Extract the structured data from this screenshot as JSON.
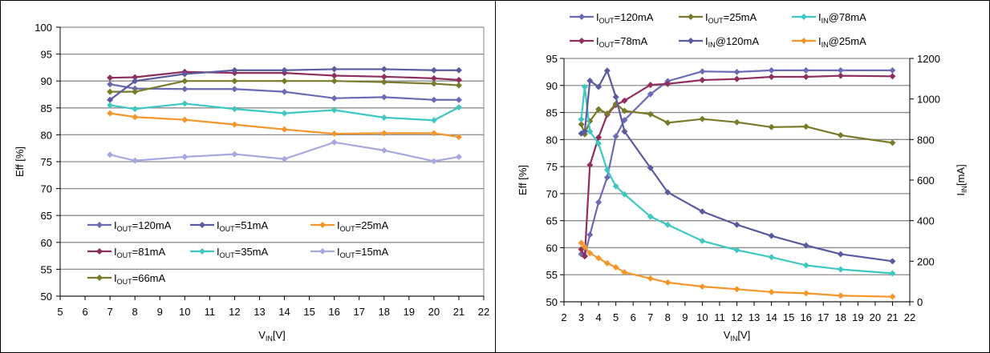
{
  "chart_data": [
    {
      "type": "line",
      "xlabel": "V_IN [V]",
      "ylabel": "Eff [%]",
      "xlim": [
        5,
        22
      ],
      "ylim": [
        50,
        100
      ],
      "xticks": [
        5,
        6,
        7,
        8,
        9,
        10,
        11,
        12,
        13,
        14,
        15,
        16,
        17,
        18,
        19,
        20,
        21,
        22
      ],
      "yticks": [
        50,
        55,
        60,
        65,
        70,
        75,
        80,
        85,
        90,
        95,
        100
      ],
      "grid": "horizontal",
      "legend_placement": "lower-left",
      "series": [
        {
          "name": "I_OUT=120mA",
          "color": "#6b6bb5",
          "points": [
            [
              7,
              89.4
            ],
            [
              8,
              88.6
            ],
            [
              10,
              88.5
            ],
            [
              12,
              88.5
            ],
            [
              14,
              88.0
            ],
            [
              16,
              86.8
            ],
            [
              18,
              87.0
            ],
            [
              20,
              86.5
            ],
            [
              21,
              86.5
            ]
          ]
        },
        {
          "name": "I_OUT=81mA",
          "color": "#8f2f5e",
          "points": [
            [
              7,
              90.6
            ],
            [
              8,
              90.7
            ],
            [
              10,
              91.7
            ],
            [
              12,
              91.5
            ],
            [
              14,
              91.5
            ],
            [
              16,
              91.0
            ],
            [
              18,
              90.8
            ],
            [
              20,
              90.5
            ],
            [
              21,
              90.2
            ]
          ]
        },
        {
          "name": "I_OUT=66mA",
          "color": "#7a7a2a",
          "points": [
            [
              7,
              88.0
            ],
            [
              8,
              88.0
            ],
            [
              10,
              90.0
            ],
            [
              12,
              90.0
            ],
            [
              14,
              90.0
            ],
            [
              16,
              90.0
            ],
            [
              18,
              89.8
            ],
            [
              20,
              89.5
            ],
            [
              21,
              89.2
            ]
          ]
        },
        {
          "name": "I_OUT=51mA",
          "color": "#5a5a9e",
          "points": [
            [
              7,
              86.5
            ],
            [
              8,
              90.0
            ],
            [
              10,
              91.3
            ],
            [
              12,
              92.0
            ],
            [
              14,
              92.0
            ],
            [
              16,
              92.2
            ],
            [
              18,
              92.2
            ],
            [
              20,
              92.0
            ],
            [
              21,
              92.0
            ]
          ]
        },
        {
          "name": "I_OUT=35mA",
          "color": "#3ec8c0",
          "points": [
            [
              7,
              85.5
            ],
            [
              8,
              84.8
            ],
            [
              10,
              85.8
            ],
            [
              12,
              84.8
            ],
            [
              14,
              84.0
            ],
            [
              16,
              84.6
            ],
            [
              18,
              83.2
            ],
            [
              20,
              82.7
            ],
            [
              21,
              85.1
            ]
          ]
        },
        {
          "name": "I_OUT=25mA",
          "color": "#f5952a",
          "points": [
            [
              7,
              84.0
            ],
            [
              8,
              83.3
            ],
            [
              10,
              82.8
            ],
            [
              12,
              81.9
            ],
            [
              14,
              81.0
            ],
            [
              16,
              80.2
            ],
            [
              18,
              80.3
            ],
            [
              20,
              80.3
            ],
            [
              21,
              79.6
            ]
          ]
        },
        {
          "name": "I_OUT=15mA",
          "color": "#a8a8e0",
          "points": [
            [
              7,
              76.3
            ],
            [
              8,
              75.2
            ],
            [
              10,
              75.9
            ],
            [
              12,
              76.4
            ],
            [
              14,
              75.5
            ],
            [
              16,
              78.6
            ],
            [
              18,
              77.1
            ],
            [
              20,
              75.1
            ],
            [
              21,
              75.9
            ]
          ]
        }
      ]
    },
    {
      "type": "line",
      "xlabel": "V_IN [V]",
      "ylabel": "Eff [%]",
      "y2label": "I_IN [mA]",
      "xlim": [
        2,
        22
      ],
      "ylim": [
        50,
        95
      ],
      "y2lim": [
        0,
        1200
      ],
      "xticks": [
        2,
        3,
        4,
        5,
        6,
        7,
        8,
        9,
        10,
        11,
        12,
        13,
        14,
        15,
        16,
        17,
        18,
        19,
        20,
        21,
        22
      ],
      "yticks": [
        50,
        55,
        60,
        65,
        70,
        75,
        80,
        85,
        90,
        95
      ],
      "y2ticks": [
        0,
        200,
        400,
        600,
        800,
        1000,
        1200
      ],
      "grid": "horizontal",
      "legend_placement": "top",
      "series": [
        {
          "name": "I_OUT=120mA",
          "axis": "left",
          "color": "#6b6bb5",
          "points": [
            [
              3,
              58.8
            ],
            [
              3.2,
              58.5
            ],
            [
              3.5,
              62.4
            ],
            [
              4,
              68.4
            ],
            [
              4.5,
              73.0
            ],
            [
              5,
              80.6
            ],
            [
              5.5,
              83.6
            ],
            [
              7,
              88.4
            ],
            [
              8,
              90.8
            ],
            [
              10,
              92.6
            ],
            [
              12,
              92.5
            ],
            [
              14,
              92.8
            ],
            [
              16,
              92.8
            ],
            [
              18,
              92.8
            ],
            [
              21,
              92.8
            ]
          ]
        },
        {
          "name": "I_OUT=78mA",
          "axis": "left",
          "color": "#8f2f5e",
          "points": [
            [
              3,
              59.7
            ],
            [
              3.2,
              58.4
            ],
            [
              3.5,
              75.3
            ],
            [
              4,
              80.4
            ],
            [
              4.5,
              84.6
            ],
            [
              5,
              86.4
            ],
            [
              5.5,
              87.2
            ],
            [
              7,
              90.1
            ],
            [
              8,
              90.3
            ],
            [
              10,
              91.0
            ],
            [
              12,
              91.2
            ],
            [
              14,
              91.6
            ],
            [
              16,
              91.6
            ],
            [
              18,
              91.8
            ],
            [
              21,
              91.7
            ]
          ]
        },
        {
          "name": "I_OUT=25mA",
          "axis": "left",
          "color": "#7a7a2a",
          "points": [
            [
              3,
              82.8
            ],
            [
              3.2,
              81.0
            ],
            [
              3.5,
              83.4
            ],
            [
              4,
              85.6
            ],
            [
              4.5,
              84.8
            ],
            [
              5,
              86.6
            ],
            [
              5.5,
              85.3
            ],
            [
              7,
              84.7
            ],
            [
              8,
              83.1
            ],
            [
              10,
              83.8
            ],
            [
              12,
              83.2
            ],
            [
              14,
              82.3
            ],
            [
              16,
              82.4
            ],
            [
              18,
              80.8
            ],
            [
              21,
              79.4
            ]
          ]
        },
        {
          "name": "I_IN@78mA",
          "axis": "right",
          "color": "#3ec8c0",
          "points": [
            [
              3,
              900
            ],
            [
              3.2,
              1060
            ],
            [
              3.5,
              840
            ],
            [
              4,
              780
            ],
            [
              4.5,
              650
            ],
            [
              5,
              570
            ],
            [
              5.5,
              530
            ],
            [
              7,
              420
            ],
            [
              8,
              380
            ],
            [
              10,
              300
            ],
            [
              12,
              255
            ],
            [
              14,
              220
            ],
            [
              16,
              180
            ],
            [
              18,
              160
            ],
            [
              21,
              140
            ]
          ]
        },
        {
          "name": "I_IN@120mA",
          "axis": "right",
          "color": "#5a5a9e",
          "points": [
            [
              3,
              830
            ],
            [
              3.2,
              840
            ],
            [
              3.5,
              1090
            ],
            [
              4,
              1060
            ],
            [
              4.5,
              1140
            ],
            [
              5,
              1010
            ],
            [
              5.5,
              840
            ],
            [
              7,
              660
            ],
            [
              8,
              540
            ],
            [
              10,
              445
            ],
            [
              12,
              380
            ],
            [
              14,
              325
            ],
            [
              16,
              278
            ],
            [
              18,
              235
            ],
            [
              21,
              200
            ]
          ]
        },
        {
          "name": "I_IN@25mA",
          "axis": "right",
          "color": "#f5952a",
          "points": [
            [
              3,
              290
            ],
            [
              3.2,
              270
            ],
            [
              3.5,
              240
            ],
            [
              4,
              215
            ],
            [
              4.5,
              190
            ],
            [
              5,
              170
            ],
            [
              5.5,
              145
            ],
            [
              7,
              115
            ],
            [
              8,
              95
            ],
            [
              10,
              75
            ],
            [
              12,
              62
            ],
            [
              14,
              48
            ],
            [
              16,
              42
            ],
            [
              18,
              30
            ],
            [
              21,
              25
            ]
          ]
        }
      ]
    }
  ],
  "left_legend": [
    {
      "row": 0,
      "col": 0,
      "sidx": 0,
      "main": "I",
      "sub": "OUT",
      "rest": "=120mA"
    },
    {
      "row": 0,
      "col": 1,
      "sidx": 3,
      "main": "I",
      "sub": "OUT",
      "rest": "=51mA"
    },
    {
      "row": 0,
      "col": 2,
      "sidx": 5,
      "main": "I",
      "sub": "OUT",
      "rest": "=25mA"
    },
    {
      "row": 1,
      "col": 0,
      "sidx": 1,
      "main": "I",
      "sub": "OUT",
      "rest": "=81mA"
    },
    {
      "row": 1,
      "col": 1,
      "sidx": 4,
      "main": "I",
      "sub": "OUT",
      "rest": "=35mA"
    },
    {
      "row": 1,
      "col": 2,
      "sidx": 6,
      "main": "I",
      "sub": "OUT",
      "rest": "=15mA"
    },
    {
      "row": 2,
      "col": 0,
      "sidx": 2,
      "main": "I",
      "sub": "OUT",
      "rest": "=66mA"
    }
  ],
  "right_legend": [
    {
      "row": 0,
      "col": 0,
      "sidx": 0,
      "main": "I",
      "sub": "OUT",
      "rest": "=120mA"
    },
    {
      "row": 0,
      "col": 1,
      "sidx": 2,
      "main": "I",
      "sub": "OUT",
      "rest": "=25mA"
    },
    {
      "row": 0,
      "col": 2,
      "sidx": 3,
      "main": "I",
      "sub": "IN",
      "rest": "@78mA"
    },
    {
      "row": 1,
      "col": 0,
      "sidx": 1,
      "main": "I",
      "sub": "OUT",
      "rest": "=78mA"
    },
    {
      "row": 1,
      "col": 1,
      "sidx": 4,
      "main": "I",
      "sub": "IN",
      "rest": "@120mA"
    },
    {
      "row": 1,
      "col": 2,
      "sidx": 5,
      "main": "I",
      "sub": "IN",
      "rest": "@25mA"
    }
  ],
  "axis_text": {
    "left_ylabel": "Eff [%]",
    "left_xlabel_main": "V",
    "left_xlabel_sub": "IN",
    "left_xlabel_rest": "[V]",
    "right_ylabel": "Eff [%]",
    "right_y2label_main": "I",
    "right_y2label_sub": "IN",
    "right_y2label_rest": "[mA]",
    "right_xlabel_main": "V",
    "right_xlabel_sub": "IN",
    "right_xlabel_rest": "[V]"
  }
}
